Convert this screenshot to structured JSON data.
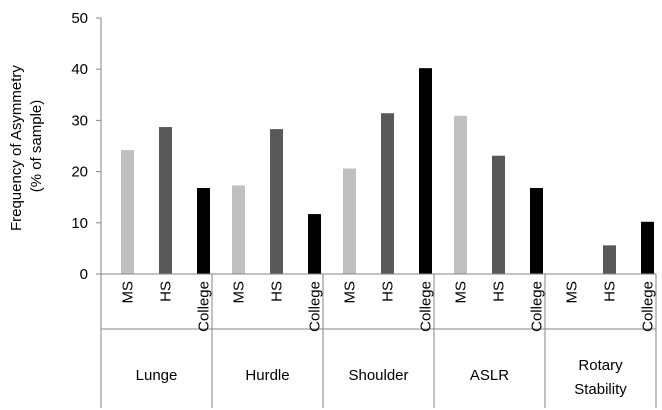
{
  "chart_data": {
    "type": "bar",
    "ylabel_lines": [
      "Frequency of Asymmetry",
      "(% of sample)"
    ],
    "ylim": [
      0,
      50
    ],
    "yticks": [
      0,
      10,
      20,
      30,
      40,
      50
    ],
    "grid": false,
    "legend": "none",
    "groups": [
      {
        "name_lines": [
          "Lunge"
        ],
        "bars": [
          {
            "category": "MS",
            "value": 24.2
          },
          {
            "category": "HS",
            "value": 28.7
          },
          {
            "category": "College",
            "value": 16.8
          }
        ]
      },
      {
        "name_lines": [
          "Hurdle"
        ],
        "bars": [
          {
            "category": "MS",
            "value": 17.3
          },
          {
            "category": "HS",
            "value": 28.3
          },
          {
            "category": "College",
            "value": 11.7
          }
        ]
      },
      {
        "name_lines": [
          "Shoulder"
        ],
        "bars": [
          {
            "category": "MS",
            "value": 20.6
          },
          {
            "category": "HS",
            "value": 31.4
          },
          {
            "category": "College",
            "value": 40.2
          }
        ]
      },
      {
        "name_lines": [
          "ASLR"
        ],
        "bars": [
          {
            "category": "MS",
            "value": 30.9
          },
          {
            "category": "HS",
            "value": 23.1
          },
          {
            "category": "College",
            "value": 16.8
          }
        ]
      },
      {
        "name_lines": [
          "Rotary",
          "Stability"
        ],
        "bars": [
          {
            "category": "MS",
            "value": 0
          },
          {
            "category": "HS",
            "value": 5.6
          },
          {
            "category": "College",
            "value": 10.2
          }
        ]
      }
    ],
    "colors": {
      "MS": "#c0c0c0",
      "HS": "#595959",
      "College": "#000000",
      "axis": "#868686"
    }
  }
}
